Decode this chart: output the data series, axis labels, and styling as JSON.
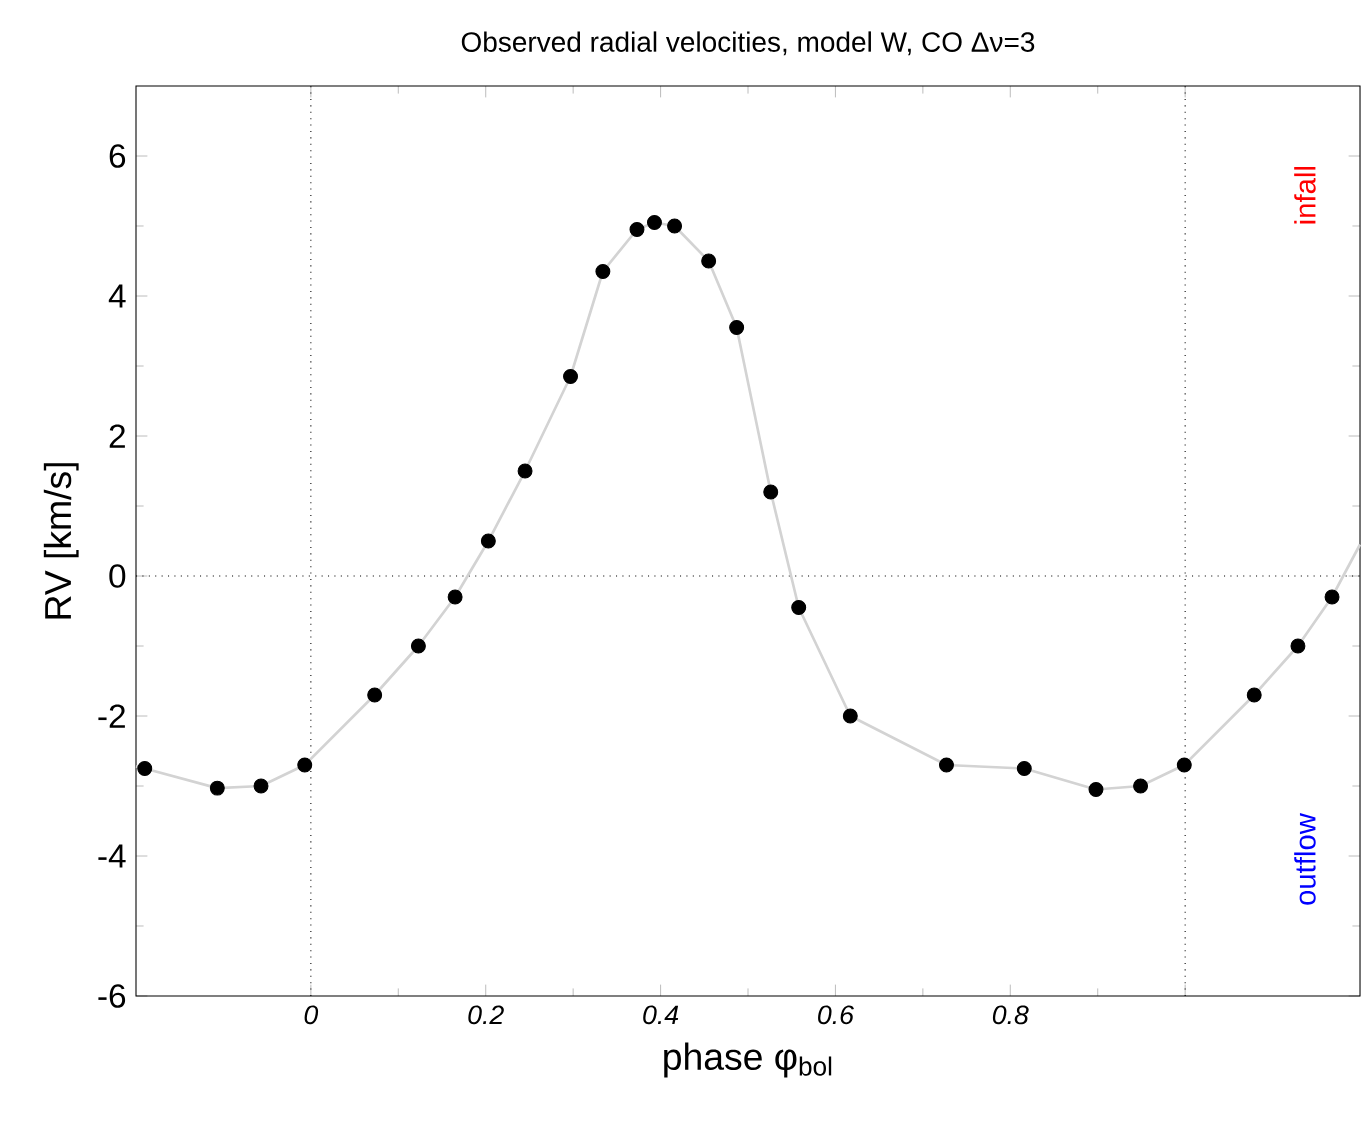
{
  "chart_data": {
    "type": "scatter",
    "title": "Observed radial velocities, model W, CO Δν=3",
    "xlabel": "phase  φ$_{bol}$",
    "ylabel": "RV  [km/s]",
    "xlim": [
      -0.2,
      1.2
    ],
    "ylim": [
      -6,
      7
    ],
    "xticks": [
      0,
      0.2,
      0.4,
      0.6,
      0.8,
      {
        "value": 1,
        "label": null
      }
    ],
    "yticks": [
      -6,
      -4,
      -2,
      0,
      2,
      4,
      6
    ],
    "grid": false,
    "annotations": [
      "infall",
      "outflow"
    ],
    "ref_lines": [
      {
        "axis": "x",
        "value": 0,
        "line_style": "dotted",
        "color": "#000000"
      },
      {
        "axis": "x",
        "value": 1,
        "line_style": "dotted",
        "color": "#000000"
      },
      {
        "axis": "y",
        "value": 0,
        "line_style": "dotted",
        "color": "#000000"
      }
    ],
    "series": [
      {
        "type": "line",
        "color": "#d3d3d3",
        "marker": "none",
        "x": [
          -0.2,
          -0.19,
          -0.107,
          -0.057,
          -0.007,
          0.073,
          0.123,
          0.165,
          0.203,
          0.245,
          0.297,
          0.334,
          0.373,
          0.393,
          0.416,
          0.455,
          0.487,
          0.526,
          0.558,
          0.617,
          0.727,
          0.816,
          0.898,
          0.949,
          0.999,
          1.079,
          1.129,
          1.168,
          1.2
        ],
        "values": [
          -2.72,
          -2.75,
          -3.03,
          -3.0,
          -2.7,
          -1.7,
          -1.0,
          -0.3,
          0.5,
          1.5,
          2.85,
          4.35,
          4.95,
          5.05,
          5.0,
          4.5,
          3.55,
          1.2,
          -0.45,
          -2.0,
          -2.7,
          -2.75,
          -3.05,
          -3.0,
          -2.7,
          -1.7,
          -1.0,
          -0.3,
          0.45
        ]
      },
      {
        "color": "#000000",
        "marker": "circle",
        "x": [
          -0.19,
          -0.107,
          -0.057,
          -0.007,
          0.073,
          0.123,
          0.165,
          0.203,
          0.245,
          0.297,
          0.334,
          0.373,
          0.393,
          0.416,
          0.455,
          0.487,
          0.526,
          0.558,
          0.617,
          0.727,
          0.816,
          0.898,
          0.949,
          0.999,
          1.079,
          1.129,
          1.168
        ],
        "values": [
          -2.75,
          -3.03,
          -3.0,
          -2.7,
          -1.7,
          -1.0,
          -0.3,
          0.5,
          1.5,
          2.85,
          4.35,
          4.95,
          5.05,
          5.0,
          4.5,
          3.55,
          1.2,
          -0.45,
          -2.0,
          -2.7,
          -2.75,
          -3.05,
          -3.0,
          -2.7,
          -1.7,
          -1.0,
          -0.3
        ]
      }
    ]
  }
}
